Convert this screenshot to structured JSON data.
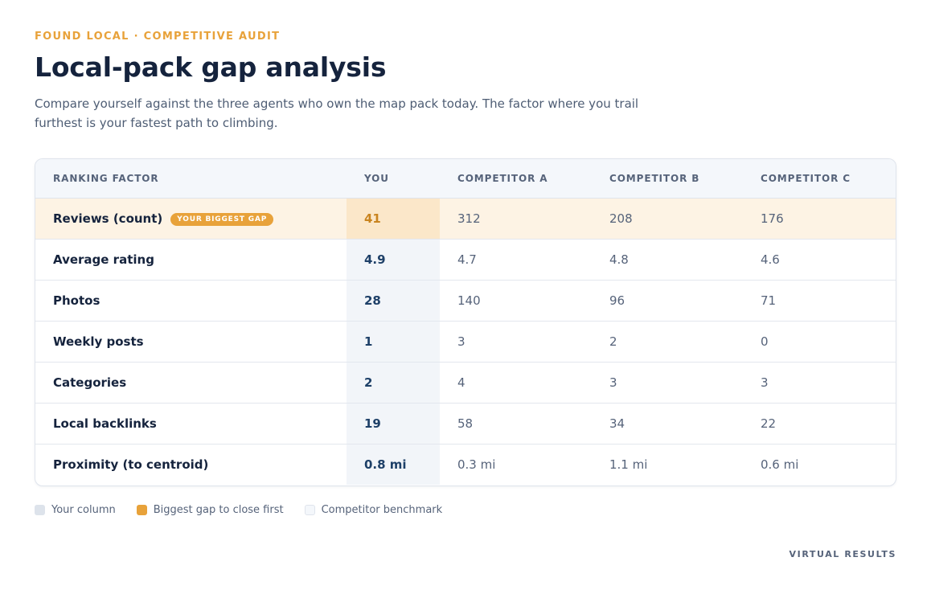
{
  "header": {
    "eyebrow": "FOUND LOCAL · COMPETITIVE AUDIT",
    "title": "Local-pack gap analysis",
    "subtitle": "Compare yourself against the three agents who own the map pack today. The factor where you trail furthest is your fastest path to climbing."
  },
  "table": {
    "columns": [
      "RANKING FACTOR",
      "YOU",
      "COMPETITOR A",
      "COMPETITOR B",
      "COMPETITOR C"
    ],
    "gap_badge": "YOUR BIGGEST GAP",
    "rows": [
      {
        "factor": "Reviews (count)",
        "you": "41",
        "a": "312",
        "b": "208",
        "c": "176"
      },
      {
        "factor": "Average rating",
        "you": "4.9",
        "a": "4.7",
        "b": "4.8",
        "c": "4.6"
      },
      {
        "factor": "Photos",
        "you": "28",
        "a": "140",
        "b": "96",
        "c": "71"
      },
      {
        "factor": "Weekly posts",
        "you": "1",
        "a": "3",
        "b": "2",
        "c": "0"
      },
      {
        "factor": "Categories",
        "you": "2",
        "a": "4",
        "b": "3",
        "c": "3"
      },
      {
        "factor": "Local backlinks",
        "you": "19",
        "a": "58",
        "b": "34",
        "c": "22"
      },
      {
        "factor": "Proximity (to centroid)",
        "you": "0.8 mi",
        "a": "0.3 mi",
        "b": "1.1 mi",
        "c": "0.6 mi"
      }
    ]
  },
  "legend": {
    "your_column": "Your column",
    "biggest_gap": "Biggest gap to close first",
    "competitor_benchmark": "Competitor benchmark"
  },
  "footer": {
    "label": "VIRTUAL RESULTS"
  },
  "colors": {
    "accent": "#e8a23a",
    "title": "#15233d",
    "gap_row": "#fdf3e4"
  }
}
